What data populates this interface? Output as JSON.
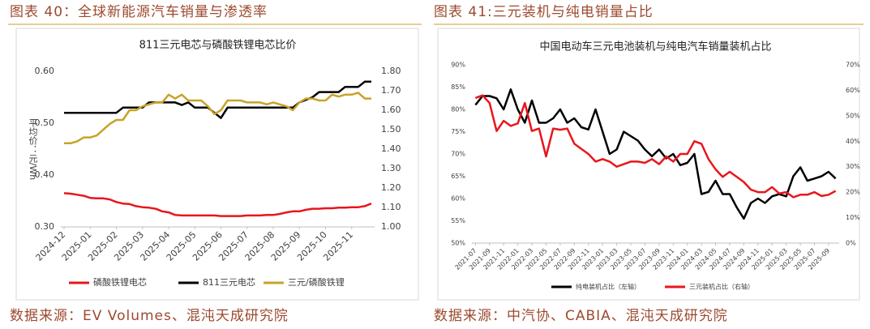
{
  "chart_data": [
    {
      "type": "line",
      "caption": "图表 40：全球新能源汽车销量与渗透率",
      "source": "数据来源：EV Volumes、混沌天成研究院",
      "title": "811三元电芯与磷酸铁锂电芯比价",
      "ylabel": "平均价：元/Wh",
      "categories": [
        "2024-12",
        null,
        null,
        null,
        "2025-01",
        null,
        null,
        null,
        "2025-02",
        null,
        null,
        null,
        "2025-03",
        null,
        null,
        null,
        "2025-04",
        null,
        null,
        null,
        "2025-05",
        null,
        null,
        null,
        "2025-06",
        null,
        null,
        null,
        "2025-07",
        null,
        null,
        null,
        "2025-08",
        null,
        null,
        null,
        "2025-09",
        null,
        null,
        null,
        "2025-10",
        null,
        null,
        null,
        "2025-11",
        null,
        null,
        null
      ],
      "ylim": [
        0.3,
        0.6
      ],
      "yticks": [
        {
          "value": 0.3,
          "label": "0.30"
        },
        {
          "value": 0.4,
          "label": "0.40"
        },
        {
          "value": 0.5,
          "label": "0.50"
        },
        {
          "value": 0.6,
          "label": "0.60"
        }
      ],
      "y2lim": [
        1.0,
        1.8
      ],
      "y2ticks": [
        {
          "value": 1.0,
          "label": "1.00"
        },
        {
          "value": 1.1,
          "label": "1.10"
        },
        {
          "value": 1.2,
          "label": "1.20"
        },
        {
          "value": 1.3,
          "label": "1.30"
        },
        {
          "value": 1.4,
          "label": "1.40"
        },
        {
          "value": 1.5,
          "label": "1.50"
        },
        {
          "value": 1.6,
          "label": "1.60"
        },
        {
          "value": 1.7,
          "label": "1.70"
        },
        {
          "value": 1.8,
          "label": "1.80"
        }
      ],
      "grid": false,
      "series": [
        {
          "name": "磷酸铁锂电芯",
          "color": "#e8161b",
          "values": [
            0.365,
            0.364,
            0.362,
            0.36,
            0.356,
            0.355,
            0.355,
            0.353,
            0.348,
            0.345,
            0.344,
            0.34,
            0.338,
            0.337,
            0.335,
            0.33,
            0.328,
            0.323,
            0.322,
            0.322,
            0.322,
            0.322,
            0.322,
            0.322,
            0.321,
            0.321,
            0.321,
            0.321,
            0.322,
            0.322,
            0.322,
            0.323,
            0.323,
            0.325,
            0.328,
            0.33,
            0.33,
            0.333,
            0.335,
            0.335,
            0.336,
            0.336,
            0.337,
            0.337,
            0.338,
            0.338,
            0.34,
            0.345
          ]
        },
        {
          "name": "811三元电芯",
          "color": "#000000",
          "values": [
            0.52,
            0.52,
            0.52,
            0.52,
            0.52,
            0.52,
            0.52,
            0.52,
            0.52,
            0.53,
            0.53,
            0.53,
            0.53,
            0.54,
            0.54,
            0.54,
            0.54,
            0.54,
            0.535,
            0.54,
            0.53,
            0.53,
            0.53,
            0.52,
            0.51,
            0.53,
            0.53,
            0.53,
            0.53,
            0.53,
            0.53,
            0.53,
            0.53,
            0.53,
            0.53,
            0.53,
            0.54,
            0.545,
            0.55,
            0.56,
            0.56,
            0.56,
            0.56,
            0.57,
            0.57,
            0.57,
            0.58,
            0.58
          ]
        },
        {
          "name": "三元/磷酸铁锂",
          "color": "#c9a227",
          "axis": "y2",
          "values": [
            1.43,
            1.43,
            1.44,
            1.46,
            1.46,
            1.47,
            1.5,
            1.53,
            1.55,
            1.55,
            1.6,
            1.6,
            1.62,
            1.63,
            1.64,
            1.64,
            1.68,
            1.66,
            1.68,
            1.65,
            1.65,
            1.65,
            1.62,
            1.58,
            1.6,
            1.65,
            1.65,
            1.65,
            1.64,
            1.64,
            1.64,
            1.63,
            1.64,
            1.63,
            1.62,
            1.6,
            1.64,
            1.66,
            1.66,
            1.65,
            1.65,
            1.68,
            1.67,
            1.68,
            1.68,
            1.69,
            1.66,
            1.66
          ]
        }
      ]
    },
    {
      "type": "line",
      "caption": "图表 41:三元装机与纯电销量占比",
      "source": "数据来源：中汽协、CABIA、混沌天成研究院",
      "title": "中国电动车三元电池装机与纯电汽车销量装机占比",
      "categories": [
        "2021-07",
        null,
        "2021-09",
        null,
        "2021-11",
        null,
        "2022-01",
        null,
        "2022-03",
        null,
        "2022-05",
        null,
        "2022-07",
        null,
        "2022-09",
        null,
        "2022-11",
        null,
        "2023-01",
        null,
        "2023-03",
        null,
        "2023-05",
        null,
        "2023-07",
        null,
        "2023-09",
        null,
        "2023-11",
        null,
        "2024-01",
        null,
        "2024-03",
        null,
        "2024-05",
        null,
        "2024-07",
        null,
        "2024-09",
        null,
        "2024-11",
        null,
        "2025-01",
        null,
        "2025-03",
        null,
        "2025-05",
        null,
        "2025-07",
        null,
        "2025-09",
        null
      ],
      "ylim": [
        50,
        90
      ],
      "yticks": [
        {
          "value": 50,
          "label": "50%"
        },
        {
          "value": 55,
          "label": "55%"
        },
        {
          "value": 60,
          "label": "60%"
        },
        {
          "value": 65,
          "label": "65%"
        },
        {
          "value": 70,
          "label": "70%"
        },
        {
          "value": 75,
          "label": "75%"
        },
        {
          "value": 80,
          "label": "80%"
        },
        {
          "value": 85,
          "label": "85%"
        },
        {
          "value": 90,
          "label": "90%"
        }
      ],
      "y2lim": [
        0,
        70
      ],
      "y2ticks": [
        {
          "value": 0,
          "label": "0%"
        },
        {
          "value": 10,
          "label": "10%"
        },
        {
          "value": 20,
          "label": "20%"
        },
        {
          "value": 30,
          "label": "30%"
        },
        {
          "value": 40,
          "label": "40%"
        },
        {
          "value": 50,
          "label": "50%"
        },
        {
          "value": 60,
          "label": "60%"
        },
        {
          "value": 70,
          "label": "70%"
        }
      ],
      "grid": false,
      "series": [
        {
          "name": "纯电装机占比（左轴）",
          "color": "#000000",
          "values": [
            81,
            83,
            83,
            82.5,
            80,
            84.5,
            80,
            77,
            82,
            77,
            77,
            78,
            80,
            77,
            78,
            76,
            75.5,
            80,
            75,
            70,
            71,
            75,
            74,
            73,
            71,
            69.5,
            71,
            69,
            70,
            67.5,
            68,
            70,
            61,
            61.5,
            64,
            61,
            61,
            58,
            55.5,
            59,
            60,
            59,
            60.5,
            61,
            60.5,
            65,
            67,
            64,
            64.5,
            65,
            66,
            64.5
          ]
        },
        {
          "name": "三元装机占比（右轴）",
          "color": "#e8161b",
          "axis": "y2",
          "values": [
            57,
            58,
            55,
            44,
            48,
            46,
            47,
            55,
            44,
            45,
            34,
            45,
            44.5,
            45,
            39,
            37,
            35,
            32,
            33,
            32,
            30,
            31,
            32,
            32,
            31.5,
            33,
            31,
            34,
            32,
            35,
            35,
            40,
            39,
            33,
            29,
            26,
            28,
            26,
            24,
            21,
            20,
            20,
            22,
            19.5,
            20,
            18,
            19,
            19,
            20,
            18.5,
            19,
            20.5
          ]
        }
      ]
    }
  ]
}
